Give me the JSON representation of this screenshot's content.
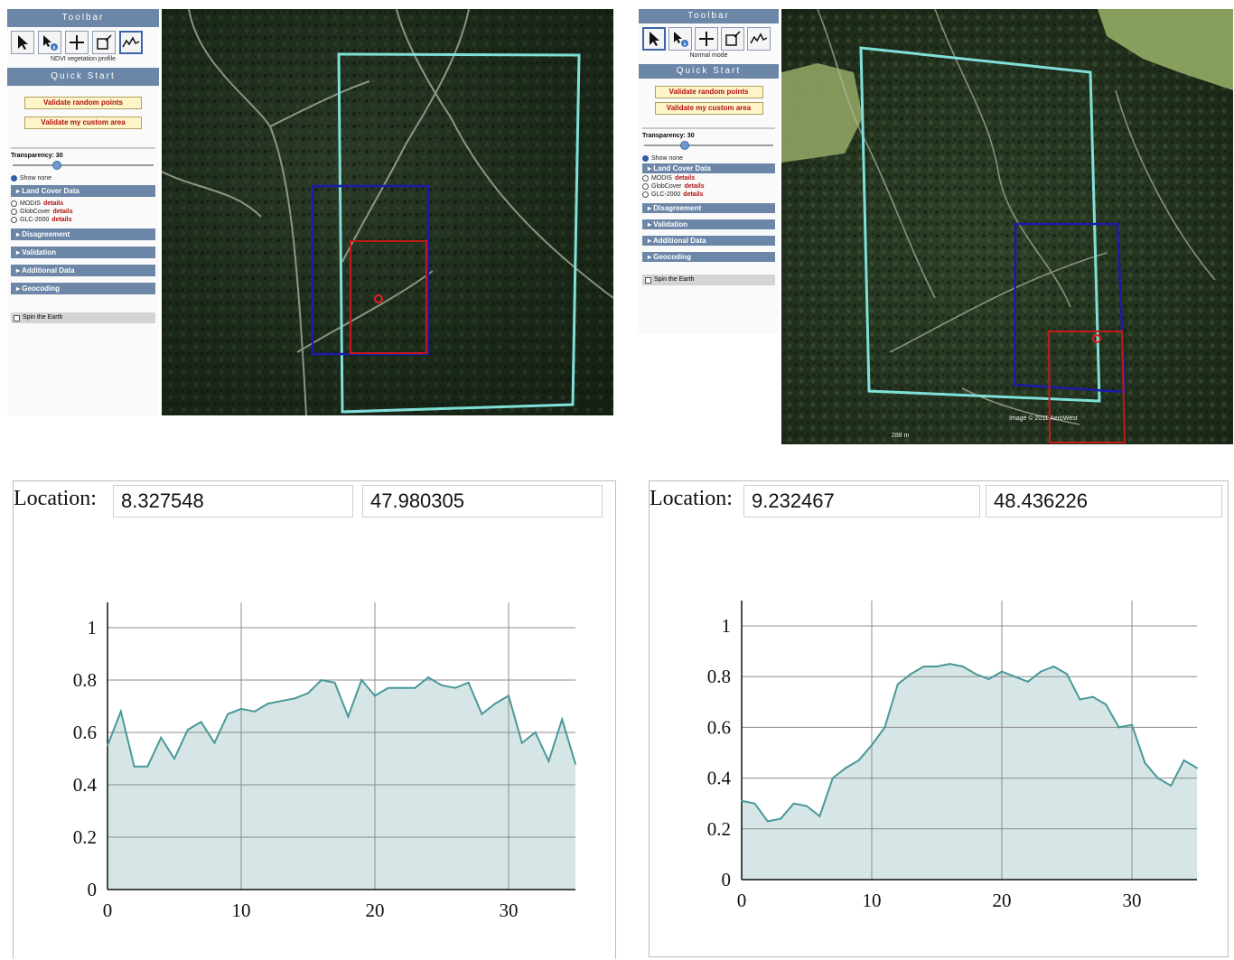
{
  "left_panel": {
    "toolbar_title": "Toolbar",
    "mode_label": "NDVI vegetation profile",
    "quick_start_title": "Quick Start",
    "validate_random": "Validate random points",
    "validate_custom": "Validate my custom area",
    "transparency_label": "Transparency: 30",
    "transparency_value": 30,
    "show_none": "Show none",
    "land_cover": "Land Cover Data",
    "modis": "MODIS",
    "globcover": "GlobCover",
    "glc": "GLC-2000",
    "details": "details",
    "disagreement": "Disagreement",
    "validation": "Validation",
    "additional": "Additional Data",
    "geocoding": "Geocoding",
    "spin": "Spin the Earth"
  },
  "right_panel": {
    "toolbar_title": "Toolbar",
    "mode_label": "Normal mode",
    "quick_start_title": "Quick Start",
    "validate_random": "Validate random points",
    "validate_custom": "Validate my custom area",
    "transparency_label": "Transparency: 30",
    "transparency_value": 30,
    "show_none": "Show none",
    "land_cover": "Land Cover Data",
    "modis": "MODIS",
    "globcover": "GlobCover",
    "glc": "GLC-2000",
    "details": "details",
    "disagreement": "Disagreement",
    "validation": "Validation",
    "additional": "Additional Data",
    "geocoding": "Geocoding",
    "spin": "Spin the Earth"
  },
  "right_map": {
    "attribution": "Image © 2011 AeroWest",
    "scale": "288 m"
  },
  "colors": {
    "cyan_box": "#7fe0d8",
    "blue_box": "#1c1ca8",
    "red_box": "#c41a1a",
    "line": "#4a9898",
    "fill": "#d6e6e6",
    "grid": "#8c8c8c"
  },
  "left_chart": {
    "location_label": "Location:",
    "lon": "8.327548",
    "lat": "47.980305"
  },
  "right_chart": {
    "location_label": "Location:",
    "lon": "9.232467",
    "lat": "48.436226"
  },
  "chart_data": [
    {
      "type": "area",
      "xlim": [
        0,
        35
      ],
      "ylim": [
        0,
        1
      ],
      "x_ticks": [
        "0",
        "10",
        "20",
        "30"
      ],
      "y_ticks": [
        "0",
        "0.2",
        "0.4",
        "0.6",
        "0.8",
        "1"
      ],
      "grid": true,
      "x": [
        0,
        1,
        2,
        3,
        4,
        5,
        6,
        7,
        8,
        9,
        10,
        11,
        12,
        13,
        14,
        15,
        16,
        17,
        18,
        19,
        20,
        21,
        22,
        23,
        24,
        25,
        26,
        27,
        28,
        29,
        30,
        31,
        32,
        33,
        34,
        35
      ],
      "values": [
        0.55,
        0.68,
        0.47,
        0.47,
        0.58,
        0.5,
        0.61,
        0.64,
        0.56,
        0.67,
        0.69,
        0.68,
        0.71,
        0.72,
        0.73,
        0.75,
        0.8,
        0.79,
        0.66,
        0.8,
        0.74,
        0.77,
        0.77,
        0.77,
        0.81,
        0.78,
        0.77,
        0.79,
        0.67,
        0.71,
        0.74,
        0.56,
        0.6,
        0.49,
        0.65,
        0.48
      ]
    },
    {
      "type": "area",
      "xlim": [
        0,
        35
      ],
      "ylim": [
        0,
        1
      ],
      "x_ticks": [
        "0",
        "10",
        "20",
        "30"
      ],
      "y_ticks": [
        "0",
        "0.2",
        "0.4",
        "0.6",
        "0.8",
        "1"
      ],
      "grid": true,
      "x": [
        0,
        1,
        2,
        3,
        4,
        5,
        6,
        7,
        8,
        9,
        10,
        11,
        12,
        13,
        14,
        15,
        16,
        17,
        18,
        19,
        20,
        21,
        22,
        23,
        24,
        25,
        26,
        27,
        28,
        29,
        30,
        31,
        32,
        33,
        34,
        35
      ],
      "values": [
        0.31,
        0.3,
        0.23,
        0.24,
        0.3,
        0.29,
        0.25,
        0.4,
        0.44,
        0.47,
        0.53,
        0.6,
        0.77,
        0.81,
        0.84,
        0.84,
        0.85,
        0.84,
        0.81,
        0.79,
        0.82,
        0.8,
        0.78,
        0.82,
        0.84,
        0.81,
        0.71,
        0.72,
        0.69,
        0.6,
        0.61,
        0.46,
        0.4,
        0.37,
        0.47,
        0.44
      ]
    }
  ]
}
